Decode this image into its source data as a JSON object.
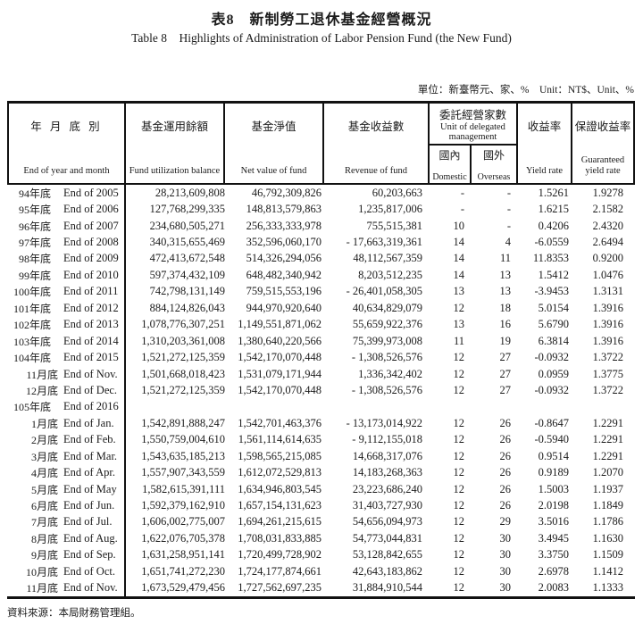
{
  "title_zh": "表8　新制勞工退休基金經營概況",
  "title_en": "Table 8　Highlights of Administration of Labor Pension Fund (the New Fund)",
  "unit_note": "單位：新臺幣元、家、%　Unit：NT$、Unit、%",
  "source_note": "資料來源：本局財務管理組。",
  "header": {
    "date_zh": "年 月 底 別",
    "date_en": "End of year and month",
    "balance_zh": "基金運用餘額",
    "balance_en": "Fund utilization balance",
    "net_zh": "基金淨值",
    "net_en": "Net value of fund",
    "revenue_zh": "基金收益數",
    "revenue_en": "Revenue of fund",
    "delegated_zh": "委託經營家數",
    "delegated_en": "Unit of delegated management",
    "domestic_zh": "國內",
    "domestic_en": "Domestic",
    "overseas_zh": "國外",
    "overseas_en": "Overseas",
    "yield_zh": "收益率",
    "yield_en": "Yield rate",
    "guaranteed_zh": "保證收益率",
    "guaranteed_en": "Guaranteed yield rate"
  },
  "rows": [
    {
      "zh": "94年底",
      "en": "End of 2005",
      "month": false,
      "balance": "28,213,609,808",
      "net": "46,792,309,826",
      "revenue": "60,203,663",
      "dom": "-",
      "ovs": "-",
      "yield": "1.5261",
      "guar": "1.9278"
    },
    {
      "zh": "95年底",
      "en": "End of 2006",
      "month": false,
      "balance": "127,768,299,335",
      "net": "148,813,579,863",
      "revenue": "1,235,817,006",
      "dom": "-",
      "ovs": "-",
      "yield": "1.6215",
      "guar": "2.1582"
    },
    {
      "zh": "96年底",
      "en": "End of 2007",
      "month": false,
      "balance": "234,680,505,271",
      "net": "256,333,333,978",
      "revenue": "755,515,381",
      "dom": "10",
      "ovs": "-",
      "yield": "0.4206",
      "guar": "2.4320"
    },
    {
      "zh": "97年底",
      "en": "End of 2008",
      "month": false,
      "balance": "340,315,655,469",
      "net": "352,596,060,170",
      "revenue": "- 17,663,319,361",
      "dom": "14",
      "ovs": "4",
      "yield": "-6.0559",
      "guar": "2.6494"
    },
    {
      "zh": "98年底",
      "en": "End of 2009",
      "month": false,
      "balance": "472,413,672,548",
      "net": "514,326,294,056",
      "revenue": "48,112,567,359",
      "dom": "14",
      "ovs": "11",
      "yield": "11.8353",
      "guar": "0.9200"
    },
    {
      "zh": "99年底",
      "en": "End of 2010",
      "month": false,
      "balance": "597,374,432,109",
      "net": "648,482,340,942",
      "revenue": "8,203,512,235",
      "dom": "14",
      "ovs": "13",
      "yield": "1.5412",
      "guar": "1.0476"
    },
    {
      "zh": "100年底",
      "en": "End of 2011",
      "month": false,
      "balance": "742,798,131,149",
      "net": "759,515,553,196",
      "revenue": "- 26,401,058,305",
      "dom": "13",
      "ovs": "13",
      "yield": "-3.9453",
      "guar": "1.3131"
    },
    {
      "zh": "101年底",
      "en": "End of 2012",
      "month": false,
      "balance": "884,124,826,043",
      "net": "944,970,920,640",
      "revenue": "40,634,829,079",
      "dom": "12",
      "ovs": "18",
      "yield": "5.0154",
      "guar": "1.3916"
    },
    {
      "zh": "102年底",
      "en": "End of 2013",
      "month": false,
      "balance": "1,078,776,307,251",
      "net": "1,149,551,871,062",
      "revenue": "55,659,922,376",
      "dom": "13",
      "ovs": "16",
      "yield": "5.6790",
      "guar": "1.3916"
    },
    {
      "zh": "103年底",
      "en": "End of 2014",
      "month": false,
      "balance": "1,310,203,361,008",
      "net": "1,380,640,220,566",
      "revenue": "75,399,973,008",
      "dom": "11",
      "ovs": "19",
      "yield": "6.3814",
      "guar": "1.3916"
    },
    {
      "zh": "104年底",
      "en": "End of 2015",
      "month": false,
      "balance": "1,521,272,125,359",
      "net": "1,542,170,070,448",
      "revenue": "- 1,308,526,576",
      "dom": "12",
      "ovs": "27",
      "yield": "-0.0932",
      "guar": "1.3722"
    },
    {
      "zh": "11月底",
      "en": "End of Nov.",
      "month": true,
      "balance": "1,501,668,018,423",
      "net": "1,531,079,171,944",
      "revenue": "1,336,342,402",
      "dom": "12",
      "ovs": "27",
      "yield": "0.0959",
      "guar": "1.3775"
    },
    {
      "zh": "12月底",
      "en": "End of Dec.",
      "month": true,
      "balance": "1,521,272,125,359",
      "net": "1,542,170,070,448",
      "revenue": "- 1,308,526,576",
      "dom": "12",
      "ovs": "27",
      "yield": "-0.0932",
      "guar": "1.3722"
    },
    {
      "zh": "105年底",
      "en": "End of 2016",
      "month": false,
      "balance": "",
      "net": "",
      "revenue": "",
      "dom": "",
      "ovs": "",
      "yield": "",
      "guar": ""
    },
    {
      "zh": "1月底",
      "en": "End of Jan.",
      "month": true,
      "balance": "1,542,891,888,247",
      "net": "1,542,701,463,376",
      "revenue": "- 13,173,014,922",
      "dom": "12",
      "ovs": "26",
      "yield": "-0.8647",
      "guar": "1.2291"
    },
    {
      "zh": "2月底",
      "en": "End of Feb.",
      "month": true,
      "balance": "1,550,759,004,610",
      "net": "1,561,114,614,635",
      "revenue": "- 9,112,155,018",
      "dom": "12",
      "ovs": "26",
      "yield": "-0.5940",
      "guar": "1.2291"
    },
    {
      "zh": "3月底",
      "en": "End of Mar.",
      "month": true,
      "balance": "1,543,635,185,213",
      "net": "1,598,565,215,085",
      "revenue": "14,668,317,076",
      "dom": "12",
      "ovs": "26",
      "yield": "0.9514",
      "guar": "1.2291"
    },
    {
      "zh": "4月底",
      "en": "End of Apr.",
      "month": true,
      "balance": "1,557,907,343,559",
      "net": "1,612,072,529,813",
      "revenue": "14,183,268,363",
      "dom": "12",
      "ovs": "26",
      "yield": "0.9189",
      "guar": "1.2070"
    },
    {
      "zh": "5月底",
      "en": "End of May",
      "month": true,
      "balance": "1,582,615,391,111",
      "net": "1,634,946,803,545",
      "revenue": "23,223,686,240",
      "dom": "12",
      "ovs": "26",
      "yield": "1.5003",
      "guar": "1.1937"
    },
    {
      "zh": "6月底",
      "en": "End of Jun.",
      "month": true,
      "balance": "1,592,379,162,910",
      "net": "1,657,154,131,623",
      "revenue": "31,403,727,930",
      "dom": "12",
      "ovs": "26",
      "yield": "2.0198",
      "guar": "1.1849"
    },
    {
      "zh": "7月底",
      "en": "End of Jul.",
      "month": true,
      "balance": "1,606,002,775,007",
      "net": "1,694,261,215,615",
      "revenue": "54,656,094,973",
      "dom": "12",
      "ovs": "29",
      "yield": "3.5016",
      "guar": "1.1786"
    },
    {
      "zh": "8月底",
      "en": "End of Aug.",
      "month": true,
      "balance": "1,622,076,705,378",
      "net": "1,708,031,833,885",
      "revenue": "54,773,044,831",
      "dom": "12",
      "ovs": "30",
      "yield": "3.4945",
      "guar": "1.1630"
    },
    {
      "zh": "9月底",
      "en": "End of Sep.",
      "month": true,
      "balance": "1,631,258,951,141",
      "net": "1,720,499,728,902",
      "revenue": "53,128,842,655",
      "dom": "12",
      "ovs": "30",
      "yield": "3.3750",
      "guar": "1.1509"
    },
    {
      "zh": "10月底",
      "en": "End of Oct.",
      "month": true,
      "balance": "1,651,741,272,230",
      "net": "1,724,177,874,661",
      "revenue": "42,643,183,862",
      "dom": "12",
      "ovs": "30",
      "yield": "2.6978",
      "guar": "1.1412"
    },
    {
      "zh": "11月底",
      "en": "End of Nov.",
      "month": true,
      "balance": "1,673,529,479,456",
      "net": "1,727,562,697,235",
      "revenue": "31,884,910,544",
      "dom": "12",
      "ovs": "30",
      "yield": "2.0083",
      "guar": "1.1333"
    }
  ]
}
